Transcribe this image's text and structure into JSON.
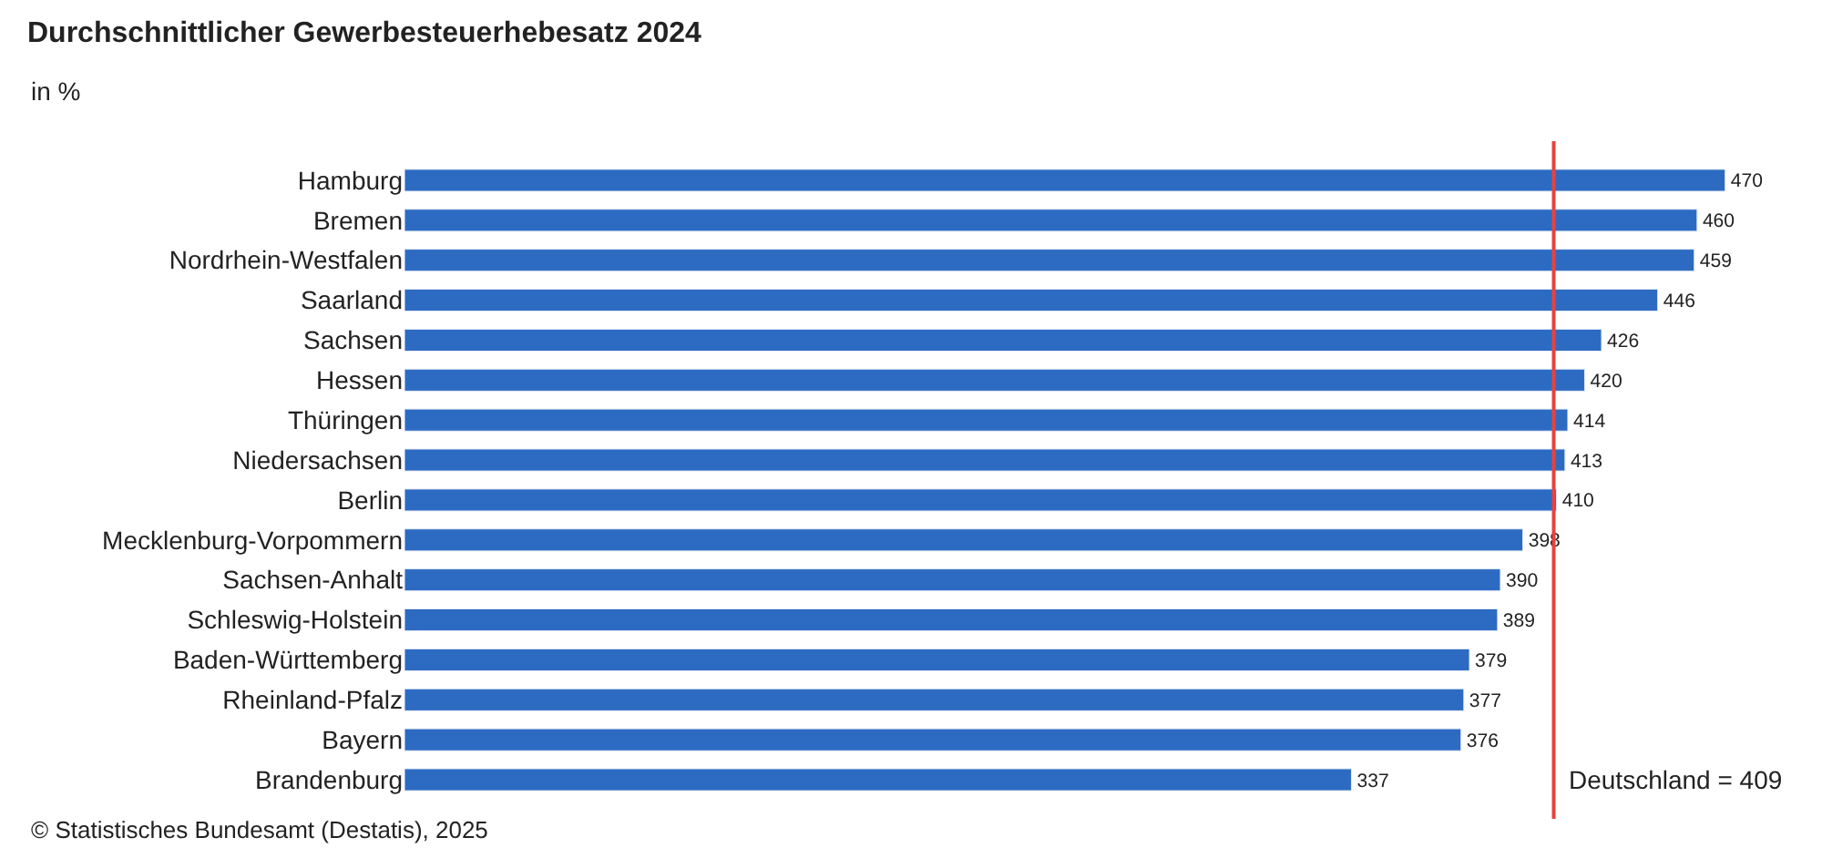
{
  "chart_data": {
    "type": "bar",
    "orientation": "horizontal",
    "title": "Durchschnittlicher Gewerbesteuerhebesatz 2024",
    "subtitle": "in %",
    "categories": [
      "Hamburg",
      "Bremen",
      "Nordrhein-Westfalen",
      "Saarland",
      "Sachsen",
      "Hessen",
      "Thüringen",
      "Niedersachsen",
      "Berlin",
      "Mecklenburg-Vorpommern",
      "Sachsen-Anhalt",
      "Schleswig-Holstein",
      "Baden-Württemberg",
      "Rheinland-Pfalz",
      "Bayern",
      "Brandenburg"
    ],
    "values": [
      470,
      460,
      459,
      446,
      426,
      420,
      414,
      413,
      410,
      398,
      390,
      389,
      379,
      377,
      376,
      337
    ],
    "color": "#2d6bc2",
    "data_labels": true,
    "tick_labels": "y",
    "legend": false,
    "ref_lines": [
      {
        "axis": "x",
        "value": 409,
        "label": "Deutschland = 409",
        "color": "#e8423f"
      }
    ],
    "annotations": [
      "© Statistisches Bundesamt (Destatis), 2025"
    ]
  }
}
